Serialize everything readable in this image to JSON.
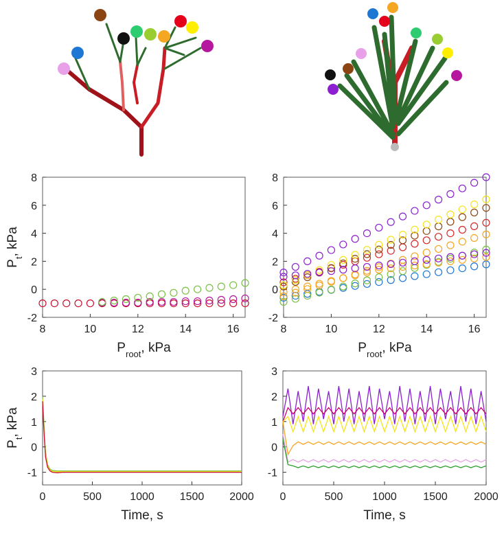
{
  "chart_data": [
    {
      "type": "scatter",
      "xlim": [
        8,
        16.5
      ],
      "ylim": [
        -2,
        8
      ],
      "xticks": [
        8,
        10,
        12,
        14,
        16
      ],
      "yticks": [
        -2,
        0,
        2,
        4,
        6,
        8
      ],
      "xlabel_parts": [
        "P",
        "root",
        ", kPa"
      ],
      "ylabel_parts": [
        "P",
        "t",
        ", kPa"
      ],
      "x": [
        8,
        8.5,
        9,
        9.5,
        10,
        10.5,
        11,
        11.5,
        12,
        12.5,
        13,
        13.5,
        14,
        14.5,
        15,
        15.5,
        16,
        16.5
      ],
      "series": [
        {
          "color": "#c8102e",
          "values": [
            -1,
            -1,
            -1,
            -1,
            -1,
            -1,
            -1,
            -1,
            -1,
            -1,
            -1,
            -1,
            -1,
            -1,
            -1,
            -1,
            -1,
            -1
          ]
        },
        {
          "color": "#b5179e",
          "values": [
            null,
            null,
            null,
            null,
            null,
            -0.95,
            -0.95,
            -0.95,
            -0.95,
            -0.9,
            -0.9,
            -0.9,
            -0.85,
            -0.85,
            -0.8,
            -0.75,
            -0.7,
            -0.65
          ]
        },
        {
          "color": "#7ac143",
          "values": [
            null,
            null,
            null,
            null,
            null,
            -0.9,
            -0.8,
            -0.7,
            -0.6,
            -0.5,
            -0.35,
            -0.25,
            -0.1,
            0,
            0.1,
            0.2,
            0.3,
            0.45
          ]
        }
      ]
    },
    {
      "type": "scatter",
      "xlim": [
        8,
        16.5
      ],
      "ylim": [
        -2,
        8
      ],
      "xticks": [
        8,
        10,
        12,
        14,
        16
      ],
      "yticks": [
        -2,
        0,
        2,
        4,
        6,
        8
      ],
      "xlabel_parts": [
        "P",
        "root",
        ", kPa"
      ],
      "x": [
        8,
        8.5,
        9,
        9.5,
        10,
        10.5,
        11,
        11.5,
        12,
        12.5,
        13,
        13.5,
        14,
        14.5,
        15,
        15.5,
        16,
        16.5
      ],
      "series": [
        {
          "color": "#1f77d4",
          "values": [
            -0.6,
            -0.46,
            -0.32,
            -0.18,
            -0.04,
            0.1,
            0.24,
            0.38,
            0.52,
            0.66,
            0.8,
            0.94,
            1.08,
            1.22,
            1.36,
            1.5,
            1.64,
            1.78
          ]
        },
        {
          "color": "#7ac143",
          "values": [
            -0.9,
            -0.68,
            -0.46,
            -0.24,
            -0.02,
            0.2,
            0.42,
            0.64,
            0.86,
            1.08,
            1.3,
            1.52,
            1.74,
            1.96,
            2.18,
            2.4,
            2.62,
            2.84
          ]
        },
        {
          "color": "#f5a623",
          "values": [
            -0.2,
            0,
            0.2,
            0.4,
            0.6,
            0.8,
            1.0,
            1.2,
            1.4,
            1.5,
            1.6,
            1.7,
            1.8,
            1.9,
            2.0,
            2.1,
            2.2,
            2.3
          ]
        },
        {
          "color": "#f5a623",
          "values": [
            -0.5,
            -0.24,
            0.02,
            0.28,
            0.54,
            0.8,
            1.06,
            1.32,
            1.58,
            1.84,
            2.1,
            2.36,
            2.62,
            2.88,
            3.14,
            3.4,
            3.66,
            3.92
          ]
        },
        {
          "color": "#d62728",
          "values": [
            0.5,
            0.75,
            1.0,
            1.25,
            1.5,
            1.75,
            2.0,
            2.25,
            2.5,
            2.75,
            3.0,
            3.25,
            3.5,
            3.75,
            4.0,
            4.25,
            4.5,
            4.75
          ]
        },
        {
          "color": "#8b4513",
          "values": [
            0.2,
            0.53,
            0.86,
            1.19,
            1.52,
            1.85,
            2.18,
            2.51,
            2.84,
            3.17,
            3.5,
            3.83,
            4.16,
            4.49,
            4.82,
            5.15,
            5.48,
            5.81
          ]
        },
        {
          "color": "#f5e41a",
          "values": [
            0.3,
            0.66,
            1.02,
            1.38,
            1.74,
            2.1,
            2.46,
            2.82,
            3.18,
            3.54,
            3.9,
            4.26,
            4.62,
            4.98,
            5.34,
            5.7,
            6.06,
            6.42
          ]
        },
        {
          "color": "#8b1fd1",
          "values": [
            0.9,
            1.0,
            1.1,
            1.2,
            1.3,
            1.4,
            1.5,
            1.6,
            1.7,
            1.8,
            1.9,
            2.0,
            2.1,
            2.2,
            2.3,
            2.4,
            2.5,
            2.6
          ]
        },
        {
          "color": "#8b1fd1",
          "values": [
            1.2,
            1.6,
            2.0,
            2.4,
            2.8,
            3.2,
            3.6,
            4.0,
            4.4,
            4.8,
            5.2,
            5.6,
            6.0,
            6.4,
            6.8,
            7.2,
            7.6,
            8.0
          ]
        }
      ]
    },
    {
      "type": "line",
      "xlim": [
        0,
        2000
      ],
      "ylim": [
        -1.5,
        3
      ],
      "xticks": [
        0,
        500,
        1000,
        1500,
        2000
      ],
      "yticks": [
        -1,
        0,
        1,
        2,
        3
      ],
      "xlabel_parts": [
        "Time, s"
      ],
      "ylabel_parts": [
        "P",
        "t",
        ", kPa"
      ],
      "x": [
        0,
        10,
        20,
        30,
        50,
        75,
        100,
        150,
        200,
        300,
        500,
        1000,
        1500,
        2000
      ],
      "series": [
        {
          "color": "#7ac143",
          "values": [
            2.0,
            1.2,
            0.4,
            -0.2,
            -0.7,
            -0.88,
            -0.93,
            -0.95,
            -0.95,
            -0.95,
            -0.95,
            -0.95,
            -0.95,
            -0.95
          ]
        },
        {
          "color": "#f5e41a",
          "values": [
            1.9,
            1.0,
            0.3,
            -0.3,
            -0.75,
            -0.92,
            -0.97,
            -0.98,
            -0.98,
            -0.98,
            -0.98,
            -0.98,
            -0.98,
            -0.98
          ]
        },
        {
          "color": "#c8102e",
          "values": [
            1.8,
            0.9,
            0.2,
            -0.4,
            -0.8,
            -0.95,
            -1.0,
            -1.02,
            -1.0,
            -1.0,
            -1.0,
            -1.0,
            -1.0,
            -1.0
          ]
        }
      ]
    },
    {
      "type": "line",
      "xlim": [
        0,
        2000
      ],
      "ylim": [
        -1.5,
        3
      ],
      "xticks": [
        0,
        500,
        1000,
        1500,
        2000
      ],
      "yticks": [
        -1,
        0,
        1,
        2,
        3
      ],
      "xlabel_parts": [
        "Time, s"
      ],
      "x": [
        0,
        50,
        100,
        150,
        200,
        250,
        300,
        350,
        400,
        450,
        500,
        550,
        600,
        650,
        700,
        750,
        800,
        850,
        900,
        950,
        1000,
        1050,
        1100,
        1150,
        1200,
        1250,
        1300,
        1350,
        1400,
        1450,
        1500,
        1550,
        1600,
        1650,
        1700,
        1750,
        1800,
        1850,
        1900,
        1950,
        2000
      ],
      "series": [
        {
          "color": "#8b1fd1",
          "values": [
            1.2,
            2.3,
            0.9,
            2.2,
            1.0,
            2.4,
            0.9,
            2.3,
            1.1,
            2.2,
            0.9,
            2.4,
            1.0,
            2.3,
            0.9,
            2.2,
            1.0,
            2.4,
            0.9,
            2.3,
            1.1,
            2.2,
            0.9,
            2.4,
            1.0,
            2.3,
            0.9,
            2.2,
            1.0,
            2.4,
            0.9,
            2.3,
            1.1,
            2.2,
            0.9,
            2.4,
            1.0,
            2.3,
            0.9,
            2.2,
            1.0
          ]
        },
        {
          "color": "#d1006f",
          "values": [
            1.0,
            1.55,
            1.3,
            1.55,
            1.3,
            1.55,
            1.3,
            1.55,
            1.3,
            1.55,
            1.3,
            1.55,
            1.3,
            1.55,
            1.3,
            1.55,
            1.3,
            1.55,
            1.3,
            1.55,
            1.3,
            1.55,
            1.3,
            1.55,
            1.3,
            1.55,
            1.3,
            1.55,
            1.3,
            1.55,
            1.3,
            1.55,
            1.3,
            1.55,
            1.3,
            1.55,
            1.3,
            1.55,
            1.3,
            1.55,
            1.3
          ]
        },
        {
          "color": "#f5e41a",
          "values": [
            1.0,
            1.2,
            0.6,
            1.2,
            0.6,
            1.2,
            0.6,
            1.2,
            0.6,
            1.2,
            0.6,
            1.2,
            0.6,
            1.2,
            0.6,
            1.2,
            0.6,
            1.2,
            0.6,
            1.2,
            0.6,
            1.2,
            0.6,
            1.2,
            0.6,
            1.2,
            0.6,
            1.2,
            0.6,
            1.2,
            0.6,
            1.2,
            0.6,
            1.2,
            0.6,
            1.2,
            0.6,
            1.2,
            0.6,
            1.2,
            0.6
          ]
        },
        {
          "color": "#f5a623",
          "values": [
            1.0,
            -0.3,
            0.05,
            0.2,
            0.1,
            0.2,
            0.1,
            0.2,
            0.1,
            0.2,
            0.1,
            0.2,
            0.1,
            0.2,
            0.1,
            0.2,
            0.1,
            0.2,
            0.1,
            0.2,
            0.1,
            0.2,
            0.1,
            0.2,
            0.1,
            0.2,
            0.1,
            0.2,
            0.1,
            0.2,
            0.1,
            0.2,
            0.1,
            0.2,
            0.1,
            0.2,
            0.1,
            0.2,
            0.1,
            0.2,
            0.1
          ]
        },
        {
          "color": "#e8a0e8",
          "values": [
            0.5,
            -0.6,
            -0.5,
            -0.6,
            -0.5,
            -0.6,
            -0.5,
            -0.6,
            -0.5,
            -0.6,
            -0.5,
            -0.6,
            -0.5,
            -0.6,
            -0.5,
            -0.6,
            -0.5,
            -0.6,
            -0.5,
            -0.6,
            -0.5,
            -0.6,
            -0.5,
            -0.6,
            -0.5,
            -0.6,
            -0.5,
            -0.6,
            -0.5,
            -0.6,
            -0.5,
            -0.6,
            -0.5,
            -0.6,
            -0.5,
            -0.6,
            -0.5,
            -0.6,
            -0.5,
            -0.6,
            -0.5
          ]
        },
        {
          "color": "#2ca02c",
          "values": [
            0.3,
            -0.7,
            -0.75,
            -0.82,
            -0.75,
            -0.82,
            -0.75,
            -0.82,
            -0.75,
            -0.82,
            -0.75,
            -0.82,
            -0.75,
            -0.82,
            -0.75,
            -0.82,
            -0.75,
            -0.82,
            -0.75,
            -0.82,
            -0.75,
            -0.82,
            -0.75,
            -0.82,
            -0.75,
            -0.82,
            -0.75,
            -0.82,
            -0.75,
            -0.82,
            -0.75,
            -0.82,
            -0.75,
            -0.82,
            -0.75,
            -0.82,
            -0.75,
            -0.82,
            -0.75,
            -0.82,
            -0.75
          ]
        }
      ]
    }
  ]
}
